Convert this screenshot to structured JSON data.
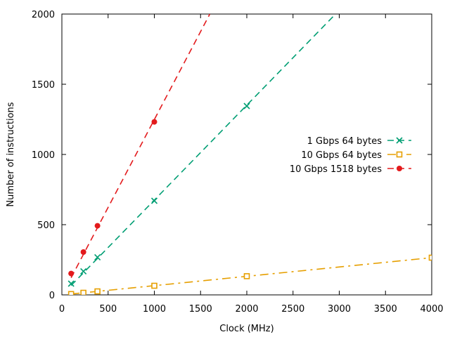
{
  "chart_data": {
    "type": "line",
    "xlabel": "Clock (MHz)",
    "ylabel": "Number of instructions",
    "xlim": [
      0,
      4000
    ],
    "ylim": [
      0,
      2000
    ],
    "xticks": [
      0,
      500,
      1000,
      1500,
      2000,
      2500,
      3000,
      3500,
      4000
    ],
    "yticks": [
      0,
      500,
      1000,
      1500,
      2000
    ],
    "grid": false,
    "legend_position": "right",
    "series": [
      {
        "name": "1 Gbps 64 bytes",
        "color": "#009e73",
        "marker": "x",
        "line_style": "dashed",
        "points": [
          [
            100,
            80
          ],
          [
            233,
            168
          ],
          [
            385,
            268
          ],
          [
            1000,
            670
          ],
          [
            2000,
            1345
          ]
        ],
        "trend": [
          [
            100,
            67
          ],
          [
            2960,
            2000
          ]
        ]
      },
      {
        "name": "10 Gbps 64 bytes",
        "color": "#e69f00",
        "marker": "open-square",
        "line_style": "dash-dot",
        "points": [
          [
            100,
            6
          ],
          [
            233,
            15
          ],
          [
            385,
            25
          ],
          [
            1000,
            65
          ],
          [
            2000,
            133
          ],
          [
            4000,
            265
          ]
        ],
        "trend": [
          [
            100,
            6
          ],
          [
            4000,
            265
          ]
        ]
      },
      {
        "name": "10 Gbps 1518 bytes",
        "color": "#e31a1c",
        "marker": "filled-circle",
        "line_style": "dashed",
        "points": [
          [
            100,
            152
          ],
          [
            233,
            305
          ],
          [
            385,
            492
          ],
          [
            1000,
            1232
          ]
        ],
        "trend": [
          [
            100,
            122
          ],
          [
            1600,
            2000
          ]
        ]
      }
    ]
  }
}
